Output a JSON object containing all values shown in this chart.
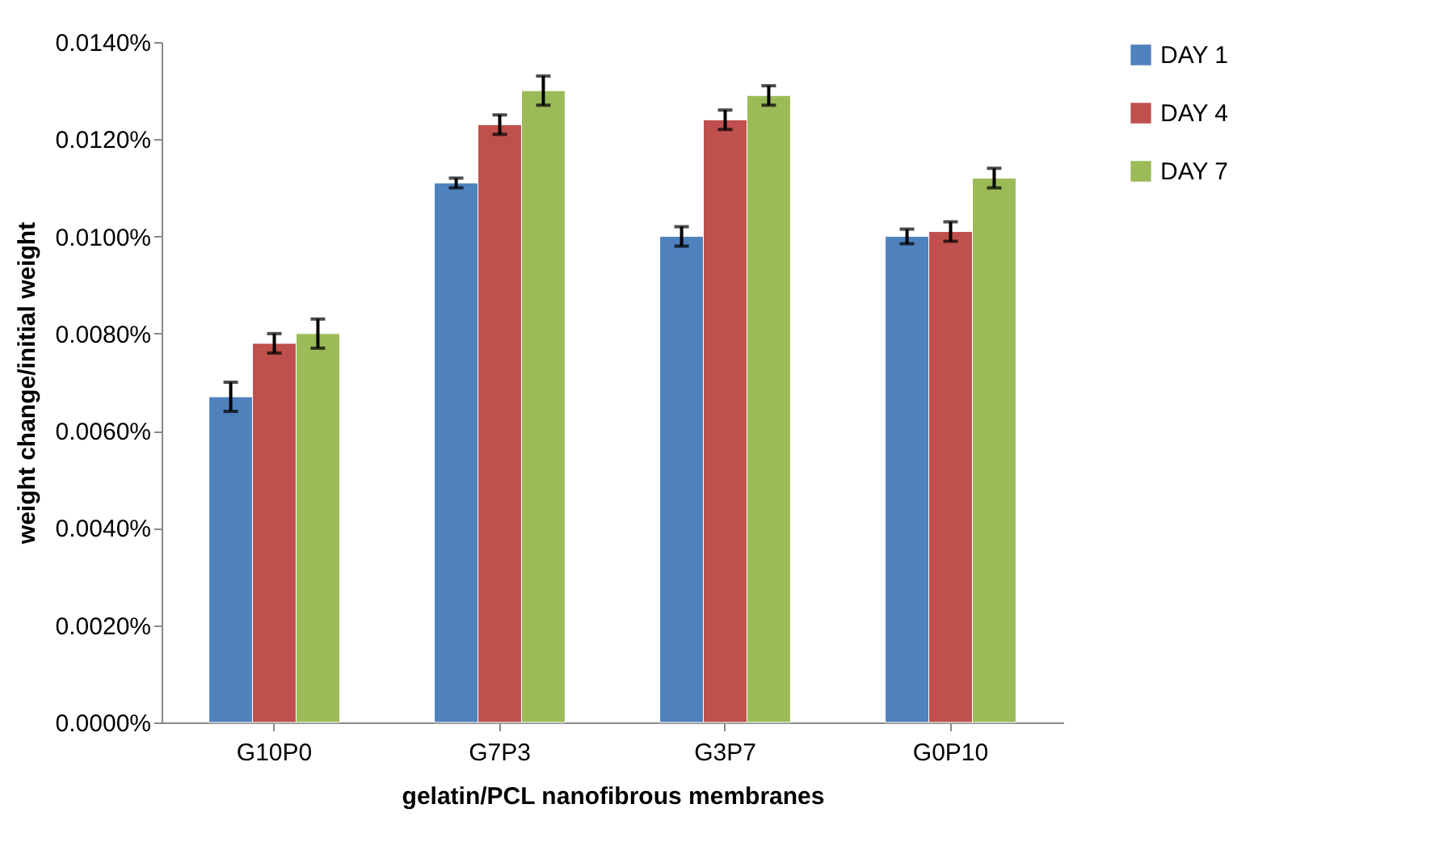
{
  "chart_data": {
    "type": "bar",
    "xlabel": "gelatin/PCL nanofibrous  membranes",
    "ylabel": "weight change/initial  weight",
    "categories": [
      "G10P0",
      "G7P3",
      "G3P7",
      "G0P10"
    ],
    "series": [
      {
        "name": "DAY 1",
        "color": "#4f81bd",
        "values": [
          0.0067,
          0.0111,
          0.01,
          0.01
        ],
        "errors": [
          0.0003,
          0.0001,
          0.0002,
          0.00015
        ]
      },
      {
        "name": "DAY 4",
        "color": "#c0504d",
        "values": [
          0.0078,
          0.0123,
          0.0124,
          0.0101
        ],
        "errors": [
          0.0002,
          0.0002,
          0.0002,
          0.0002
        ]
      },
      {
        "name": "DAY 7",
        "color": "#9bbb59",
        "values": [
          0.008,
          0.013,
          0.0129,
          0.0112
        ],
        "errors": [
          0.0003,
          0.0003,
          0.0002,
          0.0002
        ]
      }
    ],
    "ylim": [
      0,
      0.014
    ],
    "yticks": [
      {
        "value": 0,
        "label": "0.0000%"
      },
      {
        "value": 0.002,
        "label": "0.0020%"
      },
      {
        "value": 0.004,
        "label": "0.0040%"
      },
      {
        "value": 0.006,
        "label": "0.0060%"
      },
      {
        "value": 0.008,
        "label": "0.0080%"
      },
      {
        "value": 0.01,
        "label": "0.0100%"
      },
      {
        "value": 0.012,
        "label": "0.0120%"
      },
      {
        "value": 0.014,
        "label": "0.0140%"
      }
    ],
    "grid": false,
    "legend": "right"
  }
}
